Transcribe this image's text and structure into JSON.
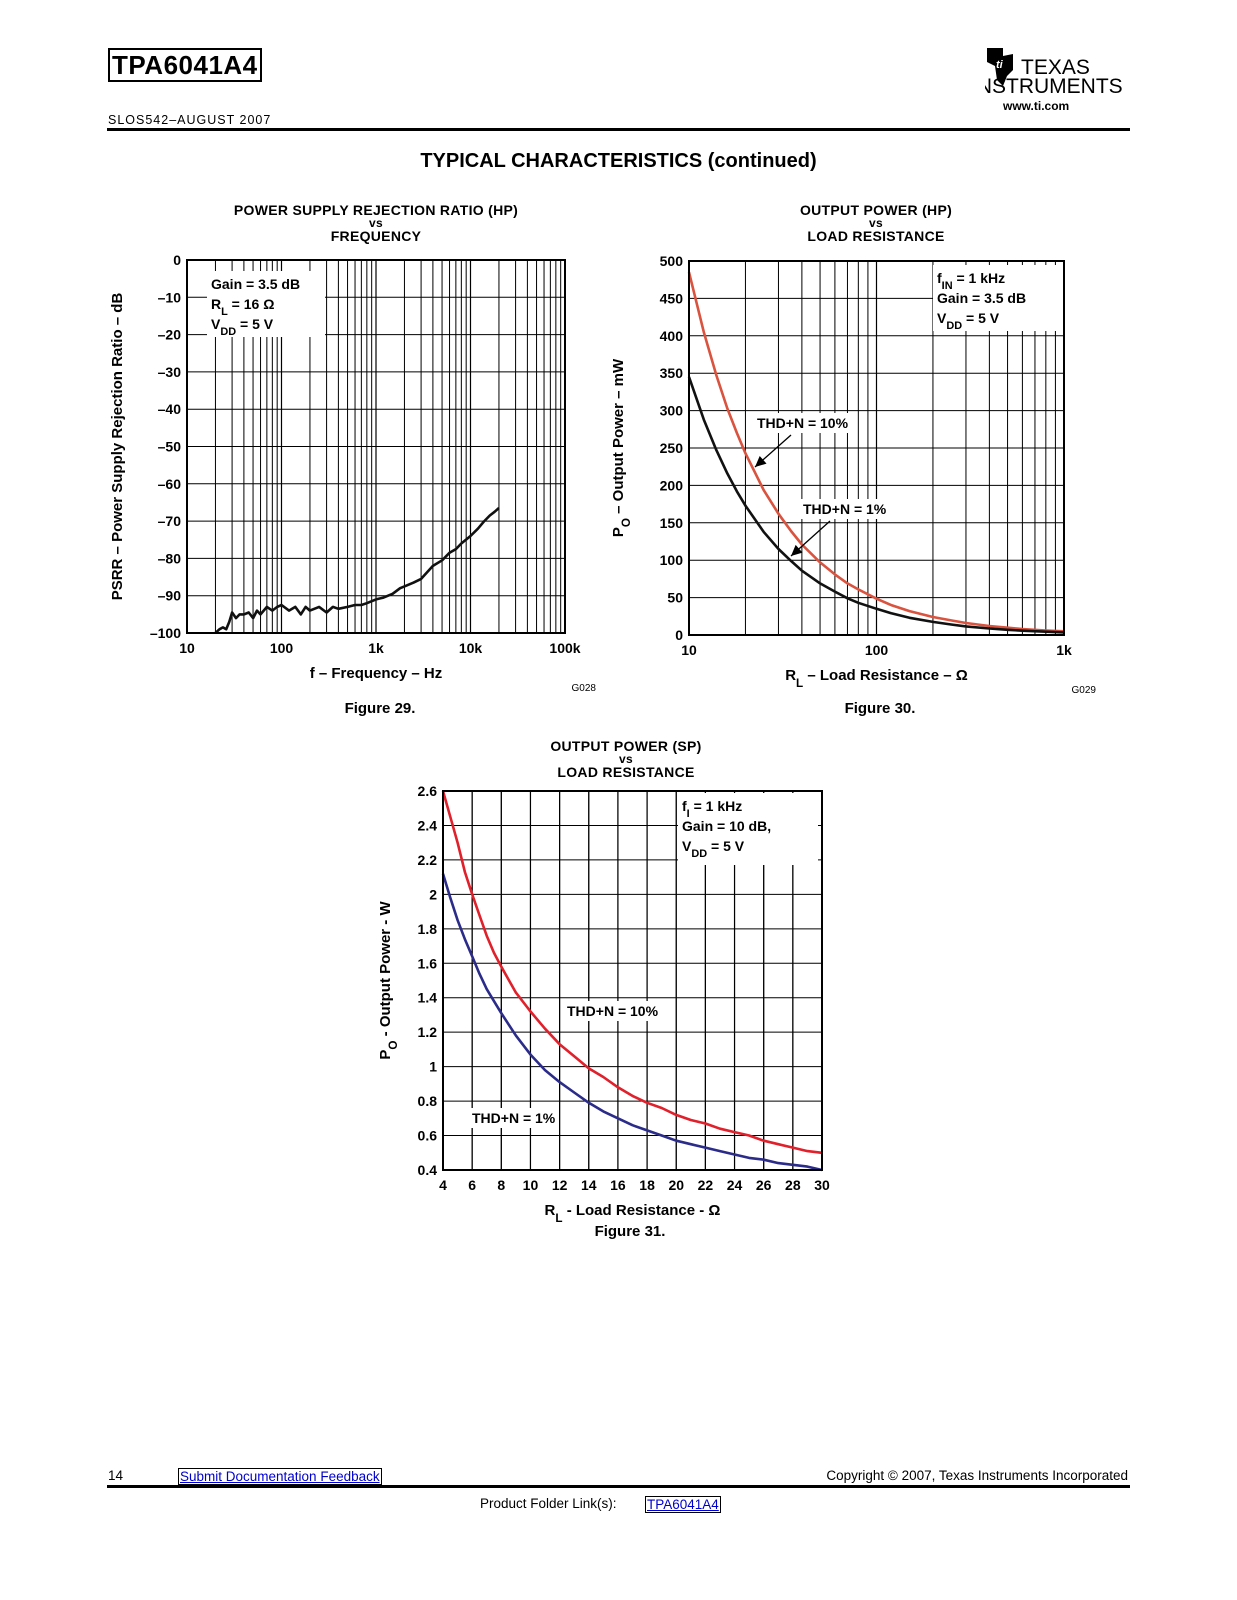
{
  "header": {
    "part_number": "TPA6041A4",
    "doc_id": "SLOS542–AUGUST 2007",
    "logo_line1": "TEXAS",
    "logo_line2": "INSTRUMENTS",
    "logo_url": "www.ti.com"
  },
  "section_title": "TYPICAL CHARACTERISTICS (continued)",
  "footer": {
    "page_number": "14",
    "feedback_link": "Submit Documentation Feedback",
    "copyright": "Copyright © 2007, Texas Instruments Incorporated",
    "product_folder_label": "Product Folder Link(s):",
    "product_folder_link": "TPA6041A4"
  },
  "chart_data": [
    {
      "id": "fig29",
      "type": "line",
      "title_line1": "POWER SUPPLY REJECTION RATIO (HP)",
      "title_vs": "vs",
      "title_line2": "FREQUENCY",
      "xlabel": "f – Frequency – Hz",
      "ylabel": "PSRR – Power Supply Rejection Ratio – dB",
      "xscale": "log",
      "xlim": [
        10,
        100000
      ],
      "ylim": [
        -100,
        0
      ],
      "xticks": [
        10,
        100,
        1000,
        10000,
        100000
      ],
      "xtick_labels": [
        "10",
        "100",
        "1k",
        "10k",
        "100k"
      ],
      "yticks": [
        0,
        -10,
        -20,
        -30,
        -40,
        -50,
        -60,
        -70,
        -80,
        -90,
        -100
      ],
      "ytick_labels": [
        "0",
        "–10",
        "–20",
        "–30",
        "–40",
        "–50",
        "–60",
        "–70",
        "–80",
        "–90",
        "–100"
      ],
      "grid": true,
      "annotation": [
        "Gain = 3.5 dB",
        "RL = 16 Ω",
        "VDD = 5 V"
      ],
      "code": "G028",
      "caption": "Figure 29.",
      "series": [
        {
          "color": "#111111",
          "x": [
            20,
            22,
            24,
            26,
            28,
            30,
            33,
            36,
            40,
            45,
            50,
            55,
            60,
            70,
            80,
            90,
            100,
            120,
            140,
            160,
            180,
            200,
            250,
            300,
            350,
            400,
            500,
            600,
            700,
            800,
            1000,
            1200,
            1500,
            1800,
            2000,
            2500,
            3000,
            4000,
            5000,
            6000,
            7000,
            8000,
            10000,
            12000,
            14000,
            16000,
            18000,
            20000
          ],
          "y": [
            -100,
            -99,
            -98.5,
            -99,
            -97,
            -94.5,
            -96,
            -95,
            -95,
            -94.5,
            -96,
            -94,
            -95,
            -93,
            -94,
            -93,
            -92.5,
            -94,
            -93,
            -95,
            -93,
            -94,
            -93,
            -94.5,
            -93,
            -93.5,
            -93,
            -92.5,
            -92.5,
            -92,
            -91,
            -90.5,
            -89.5,
            -88,
            -87.5,
            -86.5,
            -85.5,
            -82,
            -80.5,
            -78.5,
            -77.5,
            -76,
            -74,
            -72,
            -70,
            -68.5,
            -67.5,
            -66.5
          ]
        }
      ]
    },
    {
      "id": "fig30",
      "type": "line",
      "title_line1": "OUTPUT POWER (HP)",
      "title_vs": "vs",
      "title_line2": "LOAD RESISTANCE",
      "xlabel": "RL – Load Resistance – Ω",
      "ylabel": "PO – Output Power – mW",
      "xscale": "log",
      "xlim": [
        10,
        1000
      ],
      "ylim": [
        0,
        500
      ],
      "xticks": [
        10,
        100,
        1000
      ],
      "xtick_labels": [
        "10",
        "100",
        "1k"
      ],
      "yticks": [
        0,
        50,
        100,
        150,
        200,
        250,
        300,
        350,
        400,
        450,
        500
      ],
      "ytick_labels": [
        "0",
        "50",
        "100",
        "150",
        "200",
        "250",
        "300",
        "350",
        "400",
        "450",
        "500"
      ],
      "grid": true,
      "annotation": [
        "fIN = 1 kHz",
        "Gain = 3.5 dB",
        "VDD = 5 V"
      ],
      "labels": [
        "THD+N = 10%",
        "THD+N = 1%"
      ],
      "code": "G029",
      "caption": "Figure 30.",
      "series": [
        {
          "name": "THD+N = 10%",
          "color": "#d9533f",
          "x": [
            10,
            12,
            14,
            16,
            18,
            20,
            25,
            30,
            35,
            40,
            50,
            60,
            70,
            80,
            100,
            120,
            150,
            200,
            250,
            300,
            400,
            500,
            600,
            800,
            1000
          ],
          "y": [
            485,
            405,
            347,
            303,
            270,
            243,
            194,
            162,
            139,
            121,
            97,
            81,
            69,
            61,
            48.5,
            40,
            32,
            24,
            19.5,
            16,
            12,
            9.7,
            8,
            6,
            5
          ]
        },
        {
          "name": "THD+N = 1%",
          "color": "#111111",
          "x": [
            10,
            12,
            14,
            16,
            18,
            20,
            25,
            30,
            35,
            40,
            50,
            60,
            70,
            80,
            100,
            120,
            150,
            200,
            250,
            300,
            400,
            500,
            600,
            800,
            1000
          ],
          "y": [
            345,
            288,
            247,
            216,
            192,
            173,
            138,
            115,
            99,
            86,
            69,
            58,
            49,
            43,
            35,
            29,
            23,
            17.5,
            14,
            11.5,
            8.7,
            7,
            5.8,
            4.4,
            3.5
          ]
        }
      ]
    },
    {
      "id": "fig31",
      "type": "line",
      "title_line1": "OUTPUT POWER (SP)",
      "title_vs": "vs",
      "title_line2": "LOAD RESISTANCE",
      "xlabel": "RL - Load Resistance - Ω",
      "ylabel": "PO - Output Power - W",
      "xscale": "linear",
      "xlim": [
        4,
        30
      ],
      "ylim": [
        0.4,
        2.6
      ],
      "xticks": [
        4,
        6,
        8,
        10,
        12,
        14,
        16,
        18,
        20,
        22,
        24,
        26,
        28,
        30
      ],
      "xtick_labels": [
        "4",
        "6",
        "8",
        "10",
        "12",
        "14",
        "16",
        "18",
        "20",
        "22",
        "24",
        "26",
        "28",
        "30"
      ],
      "yticks": [
        0.4,
        0.6,
        0.8,
        1,
        1.2,
        1.4,
        1.6,
        1.8,
        2,
        2.2,
        2.4,
        2.6
      ],
      "ytick_labels": [
        "0.4",
        "0.6",
        "0.8",
        "1",
        "1.2",
        "1.4",
        "1.6",
        "1.8",
        "2",
        "2.2",
        "2.4",
        "2.6"
      ],
      "grid": true,
      "annotation": [
        "fI = 1 kHz",
        "Gain = 10 dB,",
        "VDD = 5 V"
      ],
      "labels": [
        "THD+N = 10%",
        "THD+N = 1%"
      ],
      "caption": "Figure 31.",
      "series": [
        {
          "name": "THD+N = 10%",
          "color": "#e0202a",
          "x": [
            4,
            4.5,
            5,
            5.5,
            6,
            6.5,
            7,
            7.5,
            8,
            9,
            10,
            11,
            12,
            13,
            14,
            15,
            16,
            17,
            18,
            19,
            20,
            21,
            22,
            23,
            24,
            25,
            26,
            27,
            28,
            29,
            30
          ],
          "y": [
            2.6,
            2.45,
            2.3,
            2.13,
            2.0,
            1.88,
            1.76,
            1.66,
            1.58,
            1.43,
            1.32,
            1.22,
            1.13,
            1.06,
            0.99,
            0.94,
            0.88,
            0.83,
            0.79,
            0.76,
            0.72,
            0.69,
            0.67,
            0.64,
            0.62,
            0.6,
            0.57,
            0.55,
            0.53,
            0.51,
            0.5
          ]
        },
        {
          "name": "THD+N = 1%",
          "color": "#2b2b8a",
          "x": [
            4,
            4.5,
            5,
            5.5,
            6,
            6.5,
            7,
            7.5,
            8,
            9,
            10,
            11,
            12,
            13,
            14,
            15,
            16,
            17,
            18,
            19,
            20,
            21,
            22,
            23,
            24,
            25,
            26,
            27,
            28,
            29,
            30
          ],
          "y": [
            2.12,
            1.98,
            1.85,
            1.74,
            1.64,
            1.54,
            1.45,
            1.38,
            1.31,
            1.18,
            1.07,
            0.98,
            0.91,
            0.85,
            0.79,
            0.74,
            0.7,
            0.66,
            0.63,
            0.6,
            0.57,
            0.55,
            0.53,
            0.51,
            0.49,
            0.47,
            0.46,
            0.44,
            0.43,
            0.42,
            0.4
          ]
        }
      ]
    }
  ]
}
